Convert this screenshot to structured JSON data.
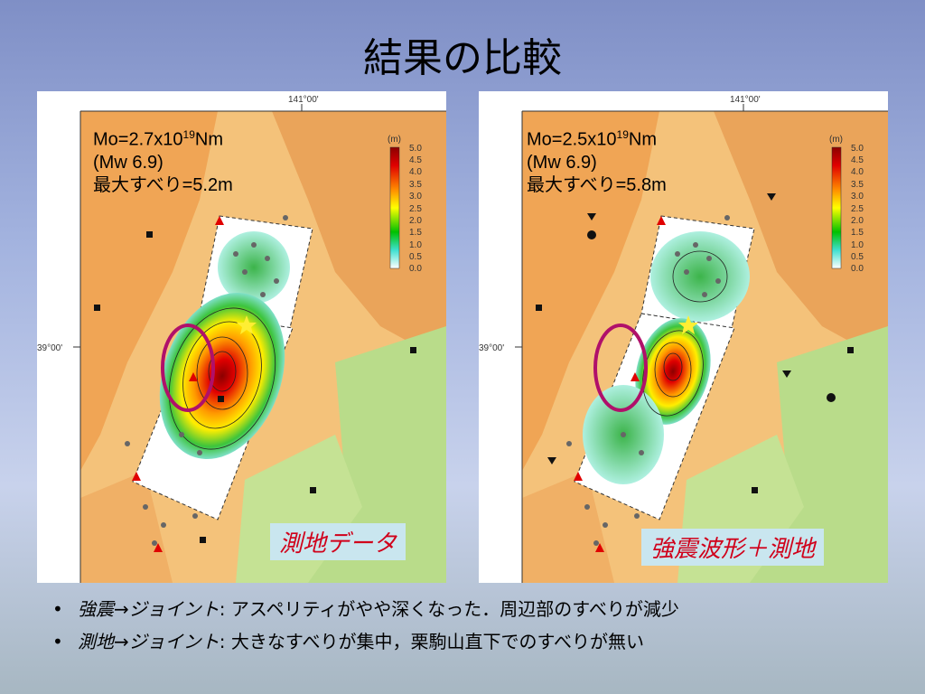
{
  "slide": {
    "title": "結果の比較"
  },
  "panels": [
    {
      "lon_label": "141°00'",
      "lat_label": "39°00'",
      "ann_mo": "Mo=2.7x10",
      "ann_exp": "19",
      "ann_unit": "Nm",
      "ann_mw": "(Mw 6.9)",
      "ann_slip": "最大すべり=5.2m",
      "method_label": "測地データ",
      "colorbar": {
        "unit": "(m)",
        "ticks": [
          "5.0",
          "4.5",
          "4.0",
          "3.5",
          "3.0",
          "2.5",
          "2.0",
          "1.5",
          "1.0",
          "0.5",
          "0.0"
        ]
      }
    },
    {
      "lon_label": "141°00'",
      "lat_label": "39°00'",
      "ann_mo": "Mo=2.5x10",
      "ann_exp": "19",
      "ann_unit": "Nm",
      "ann_mw": "(Mw 6.9)",
      "ann_slip": "最大すべり=5.8m",
      "method_label": "強震波形＋測地",
      "colorbar": {
        "unit": "(m)",
        "ticks": [
          "5.0",
          "4.5",
          "4.0",
          "3.5",
          "3.0",
          "2.5",
          "2.0",
          "1.5",
          "1.0",
          "0.5",
          "0.0"
        ]
      }
    }
  ],
  "bullets": [
    {
      "term": "強震→ジョイント",
      "text": ": アスペリティがやや深くなった．周辺部のすべりが減少"
    },
    {
      "term": "測地→ジョイント",
      "text": ": 大きなすべりが集中，栗駒山直下でのすべりが無い"
    }
  ],
  "colors": {
    "highlight_ellipse": "#b0106a",
    "label_text": "#d0001a",
    "label_bg": "#c9e6ef"
  }
}
